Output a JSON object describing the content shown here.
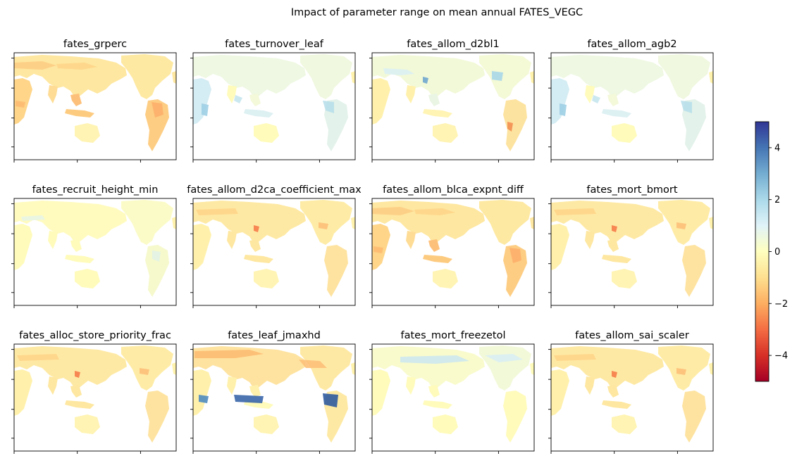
{
  "chart_data": {
    "type": "heatmap",
    "title": "Impact of parameter range on mean annual FATES_VEGC",
    "subplots": [
      {
        "title": "fates_grperc",
        "pattern": "orange"
      },
      {
        "title": "fates_turnover_leaf",
        "pattern": "blue-light"
      },
      {
        "title": "fates_allom_d2bl1",
        "pattern": "mixed"
      },
      {
        "title": "fates_allom_agb2",
        "pattern": "blue-light"
      },
      {
        "title": "fates_recruit_height_min",
        "pattern": "neutral"
      },
      {
        "title": "fates_allom_d2ca_coefficient_max",
        "pattern": "orange-light"
      },
      {
        "title": "fates_allom_blca_expnt_diff",
        "pattern": "orange"
      },
      {
        "title": "fates_mort_bmort",
        "pattern": "orange-light"
      },
      {
        "title": "fates_alloc_store_priority_frac",
        "pattern": "orange-light"
      },
      {
        "title": "fates_leaf_jmaxhd",
        "pattern": "strong"
      },
      {
        "title": "fates_mort_freezetol",
        "pattern": "blue-north"
      },
      {
        "title": "fates_allom_sai_scaler",
        "pattern": "orange-light"
      }
    ],
    "colorbar": {
      "colormap": "RdYlBu",
      "range": [
        -5,
        5
      ],
      "ticks": [
        -4,
        -2,
        0,
        2,
        4
      ],
      "tick_labels": [
        "−4",
        "−2",
        "0",
        "2",
        "4"
      ]
    }
  }
}
